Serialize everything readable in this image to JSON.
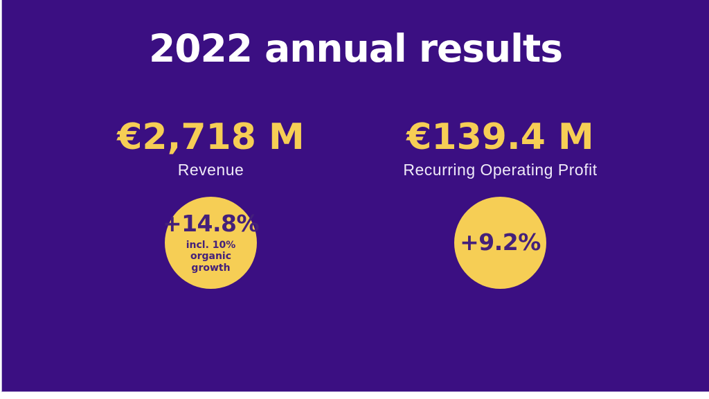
{
  "slide": {
    "title": "2022 annual results",
    "colors": {
      "background": "#3B0F82",
      "accent_yellow": "#F6CE55",
      "title_white": "#FFFFFF",
      "label_lavender": "#EFEAF8",
      "circle_text_purple": "#44207A",
      "edge_lavender": "#BEB3D9"
    },
    "metrics": [
      {
        "value": "€2,718 M",
        "label": "Revenue",
        "badge": {
          "main": "+14.8%",
          "note": "incl. 10% organic\ngrowth"
        }
      },
      {
        "value": "€139.4 M",
        "label": "Recurring Operating Profit",
        "badge": {
          "main": "+9.2%"
        }
      }
    ]
  }
}
